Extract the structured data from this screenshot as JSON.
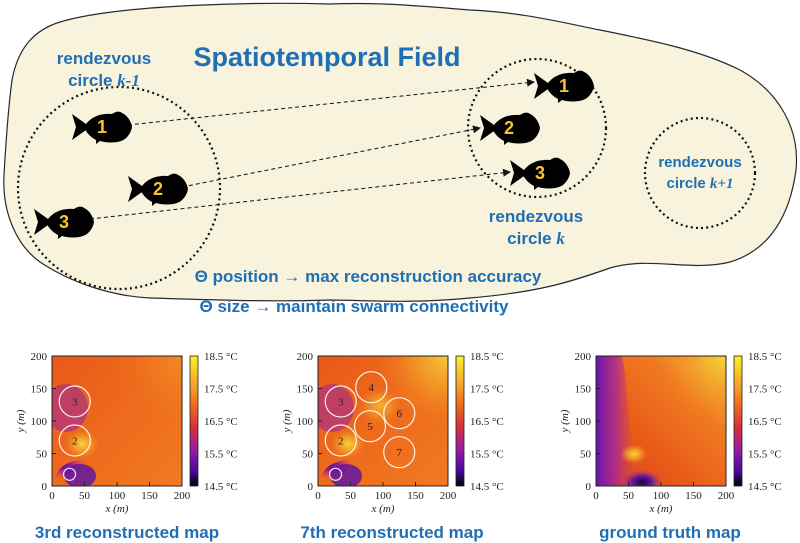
{
  "diagram": {
    "title": "Spatiotemporal Field",
    "rendezvous_prev": {
      "line1": "rendezvous",
      "line2": "circle ",
      "index": "k-1"
    },
    "rendezvous_curr": {
      "line1": "rendezvous",
      "line2": "circle ",
      "index": "k"
    },
    "rendezvous_next": {
      "line1": "rendezvous",
      "line2": "circle ",
      "index": "k+1"
    },
    "note_position": "Θ position → max reconstruction accuracy",
    "note_size": "Θ size → maintain swarm connectivity",
    "fish_prev": [
      "1",
      "2",
      "3"
    ],
    "fish_curr": [
      "1",
      "2",
      "3"
    ],
    "colors": {
      "title": "#1f6fb5",
      "fish_number": "#f6c431",
      "field": "#f8f3dd"
    }
  },
  "maps": [
    {
      "caption": "3rd reconstructed map",
      "circles": [
        {
          "label": "3",
          "x": 35,
          "y": 130
        },
        {
          "label": "2",
          "x": 35,
          "y": 70
        },
        {
          "label": "",
          "x": 27,
          "y": 18
        }
      ]
    },
    {
      "caption": "7th reconstructed map",
      "circles": [
        {
          "label": "3",
          "x": 35,
          "y": 130
        },
        {
          "label": "4",
          "x": 82,
          "y": 152
        },
        {
          "label": "6",
          "x": 125,
          "y": 112
        },
        {
          "label": "5",
          "x": 80,
          "y": 92
        },
        {
          "label": "2",
          "x": 35,
          "y": 70
        },
        {
          "label": "7",
          "x": 125,
          "y": 52
        },
        {
          "label": "",
          "x": 27,
          "y": 18
        }
      ]
    },
    {
      "caption": "ground truth map",
      "circles": []
    }
  ],
  "axes": {
    "xlabel_var": "x",
    "xlabel_unit": " (m)",
    "ylabel_var": "y",
    "ylabel_unit": " (m)",
    "x_ticks": [
      "0",
      "50",
      "100",
      "150",
      "200"
    ],
    "y_ticks": [
      "0",
      "50",
      "100",
      "150",
      "200"
    ],
    "colorbar_ticks": [
      "18.5 °C",
      "17.5 °C",
      "16.5 °C",
      "15.5 °C",
      "14.5 °C"
    ]
  }
}
